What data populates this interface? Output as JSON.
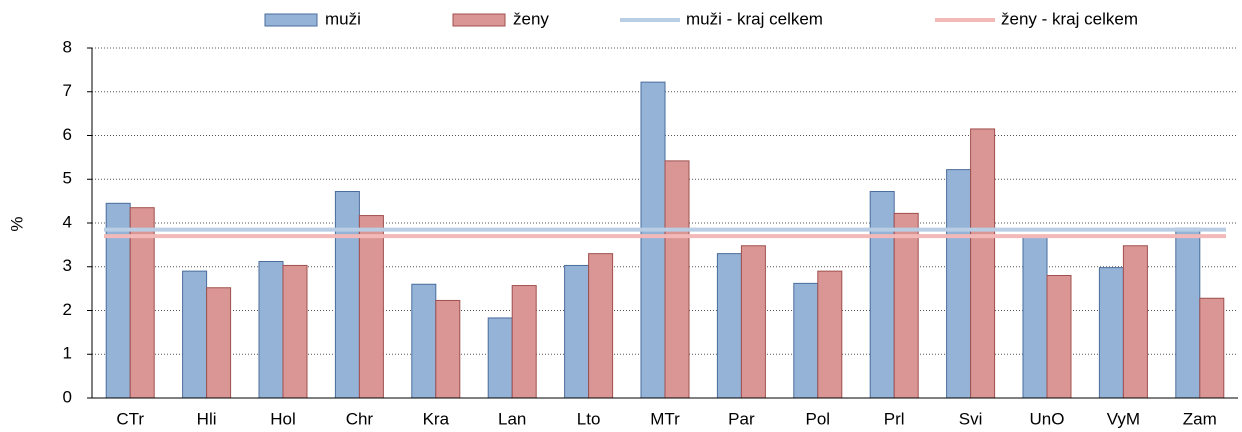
{
  "chart_data": {
    "type": "bar",
    "ylabel": "%",
    "categories": [
      "CTr",
      "Hli",
      "Hol",
      "Chr",
      "Kra",
      "Lan",
      "Lto",
      "MTr",
      "Par",
      "Pol",
      "Prl",
      "Svi",
      "UnO",
      "VyM",
      "Zam"
    ],
    "series": [
      {
        "name": "muži",
        "color": "#95b3d7",
        "values": [
          4.45,
          2.9,
          3.12,
          4.72,
          2.6,
          1.83,
          3.03,
          7.22,
          3.3,
          2.62,
          4.72,
          5.22,
          3.68,
          2.98,
          3.88
        ]
      },
      {
        "name": "ženy",
        "color": "#d99694",
        "values": [
          4.35,
          2.52,
          3.03,
          4.17,
          2.23,
          2.57,
          3.3,
          5.42,
          3.48,
          2.9,
          4.22,
          6.15,
          2.8,
          3.48,
          2.28
        ]
      }
    ],
    "reference_lines": [
      {
        "name": "muži - kraj celkem",
        "color": "#b9cde5",
        "value": 3.85
      },
      {
        "name": "ženy - kraj celkem",
        "color": "#f2b9b8",
        "value": 3.7
      }
    ],
    "ylim": [
      0,
      8
    ],
    "yticks": [
      0,
      1,
      2,
      3,
      4,
      5,
      6,
      7,
      8
    ],
    "grid": true,
    "legend": "top"
  }
}
